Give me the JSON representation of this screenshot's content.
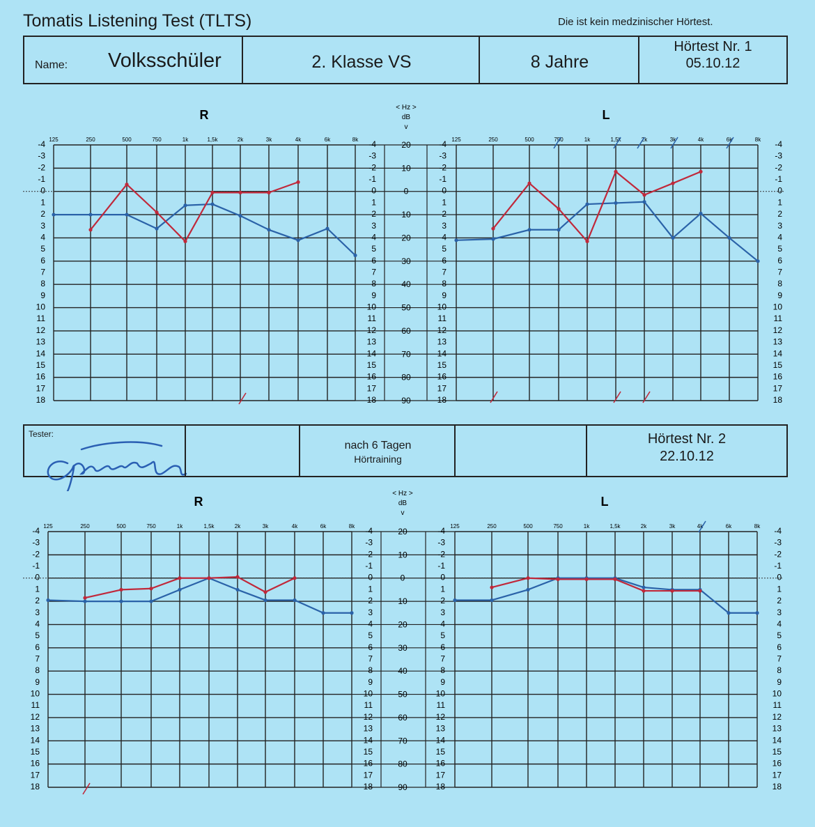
{
  "document": {
    "title": "Tomatis Listening Test (TLTS)",
    "disclaimer": "Die ist kein medzinischer Hörtest."
  },
  "header": {
    "name_label": "Name:",
    "name_value": "Volksschüler",
    "class": "2. Klasse VS",
    "age": "8 Jahre",
    "test_title": "Hörtest  Nr. 1",
    "test_date": "05.10.12"
  },
  "second_header": {
    "tester_label": "Tester:",
    "after_days": "nach   6 Tagen",
    "training": "Hörtraining",
    "test_title": "Hörtest Nr. 2",
    "test_date": "22.10.12"
  },
  "chart_data": [
    {
      "type": "line",
      "title": "Hörtest Nr. 1 – R",
      "x": [
        "125",
        "250",
        "500",
        "750",
        "1k",
        "1,5k",
        "2k",
        "3k",
        "4k",
        "6k",
        "8k"
      ],
      "series": [
        {
          "color": "#2a62a8",
          "values": [
            2,
            2,
            2,
            3.2,
            1.2,
            1.1,
            2.1,
            3.3,
            4.2,
            3.2,
            5.5
          ]
        },
        {
          "color": "#c0283a",
          "values": [
            null,
            3.3,
            -0.6,
            1.8,
            4.3,
            0.1,
            0.1,
            0.1,
            -0.8,
            null,
            null
          ]
        }
      ]
    },
    {
      "type": "line",
      "title": "Hörtest Nr. 1 – L",
      "x": [
        "125",
        "250",
        "500",
        "750",
        "1k",
        "1,5k",
        "2k",
        "3k",
        "4k",
        "6k",
        "8k"
      ],
      "series": [
        {
          "color": "#2a62a8",
          "values": [
            4.2,
            4.1,
            3.3,
            3.3,
            1.1,
            1.0,
            0.9,
            4.0,
            1.9,
            4.0,
            6.0
          ]
        },
        {
          "color": "#c0283a",
          "values": [
            null,
            3.2,
            -0.7,
            1.5,
            4.3,
            -1.7,
            0.3,
            -0.7,
            -1.7,
            null,
            null
          ]
        }
      ]
    },
    {
      "type": "line",
      "title": "Hörtest Nr. 2 – R",
      "x": [
        "125",
        "250",
        "500",
        "750",
        "1k",
        "1,5k",
        "2k",
        "3k",
        "4k",
        "6k",
        "8k"
      ],
      "series": [
        {
          "color": "#2a62a8",
          "values": [
            1.9,
            2.0,
            2.0,
            2.0,
            1.0,
            0.0,
            1.0,
            1.9,
            1.9,
            3.0,
            3.0
          ]
        },
        {
          "color": "#c0283a",
          "values": [
            null,
            1.7,
            1.0,
            0.9,
            0.0,
            0.0,
            -0.1,
            1.2,
            0.0,
            null,
            null
          ]
        }
      ]
    },
    {
      "type": "line",
      "title": "Hörtest Nr. 2 – L",
      "x": [
        "125",
        "250",
        "500",
        "750",
        "1k",
        "1,5k",
        "2k",
        "3k",
        "4k",
        "6k",
        "8k"
      ],
      "series": [
        {
          "color": "#2a62a8",
          "values": [
            1.9,
            1.9,
            1.0,
            0.0,
            0.0,
            0.0,
            0.8,
            1.0,
            1.0,
            3.0,
            3.0
          ]
        },
        {
          "color": "#c0283a",
          "values": [
            null,
            0.8,
            0.0,
            0.1,
            0.1,
            0.1,
            1.1,
            1.1,
            1.1,
            null,
            null
          ]
        }
      ]
    }
  ],
  "chart_labels": {
    "right_ear": "R",
    "left_ear": "L",
    "hz": "< Hz >",
    "db": "dB",
    "v": "v",
    "freq_ticks": [
      "125",
      "250",
      "500",
      "750",
      "1k",
      "1,5k",
      "2k",
      "3k",
      "4k",
      "6k",
      "8k"
    ],
    "side_ticks": [
      "-4",
      "-3",
      "-2",
      "-1",
      "0",
      "1",
      "2",
      "3",
      "4",
      "5",
      "6",
      "7",
      "8",
      "9",
      "10",
      "11",
      "12",
      "13",
      "14",
      "15",
      "16",
      "17",
      "18"
    ],
    "db_ticks": [
      "20",
      "10",
      "0",
      "10",
      "20",
      "30",
      "40",
      "50",
      "60",
      "70",
      "80",
      "90"
    ]
  }
}
